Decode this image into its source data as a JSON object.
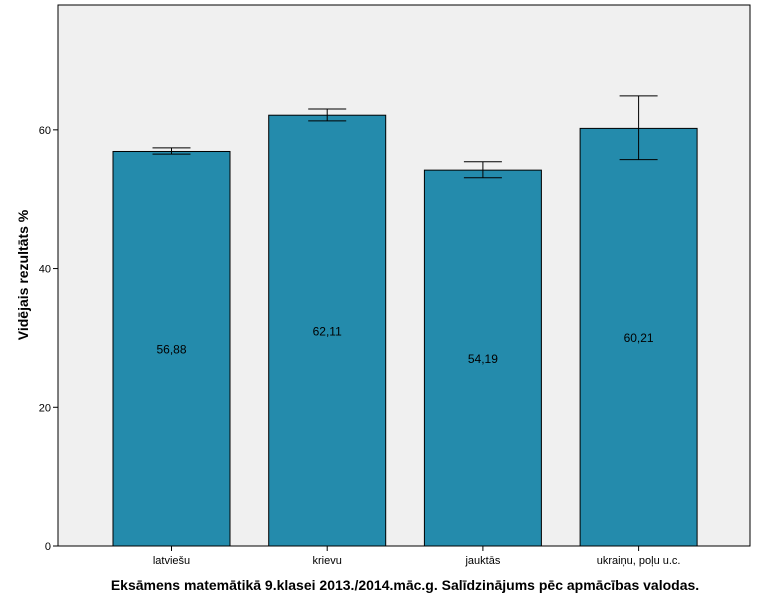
{
  "chart_data": {
    "type": "bar",
    "title": "",
    "xlabel": "Eksāmens matemātikā 9.klasei 2013./2014.māc.g. Salīdzinājums pēc apmācības valodas.",
    "ylabel": "Vidējais rezultāts %",
    "categories": [
      "latviešu",
      "krievu",
      "jauktās",
      "ukraiņu, poļu u.c."
    ],
    "values": [
      56.88,
      62.11,
      54.19,
      60.21
    ],
    "data_labels": [
      "56,88",
      "62,11",
      "54,19",
      "60,21"
    ],
    "error_bars": [
      [
        56.5,
        57.4
      ],
      [
        61.3,
        63.0
      ],
      [
        53.1,
        55.4
      ],
      [
        55.7,
        64.9
      ]
    ],
    "ylim": [
      0,
      78
    ],
    "yticks": [
      0,
      20,
      40,
      60
    ],
    "grid": false,
    "bar_color": "#248BAC",
    "plot_background": "#F0F0F0"
  }
}
